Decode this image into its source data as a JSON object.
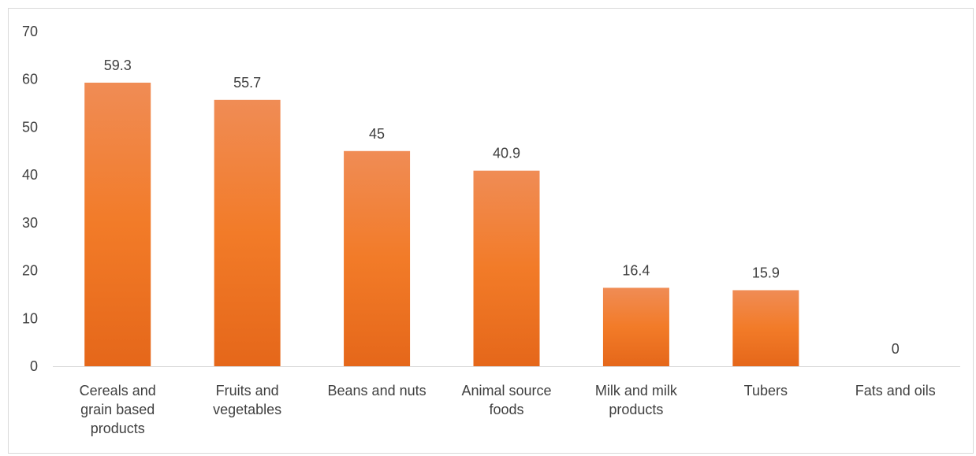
{
  "chart_data": {
    "type": "bar",
    "categories": [
      "Cereals and grain based products",
      "Fruits and vegetables",
      "Beans and nuts",
      "Animal source foods",
      "Milk and milk products",
      "Tubers",
      "Fats and oils"
    ],
    "category_lines": [
      [
        "Cereals and",
        "grain based",
        "products"
      ],
      [
        "Fruits and",
        "vegetables"
      ],
      [
        "Beans and nuts"
      ],
      [
        "Animal source",
        "foods"
      ],
      [
        "Milk and milk",
        "products"
      ],
      [
        "Tubers"
      ],
      [
        "Fats and oils"
      ]
    ],
    "values": [
      59.3,
      55.7,
      45,
      40.9,
      16.4,
      15.9,
      0
    ],
    "value_labels": [
      "59.3",
      "55.7",
      "45",
      "40.9",
      "16.4",
      "15.9",
      "0"
    ],
    "title": "",
    "xlabel": "",
    "ylabel": "",
    "ylim": [
      0,
      70
    ],
    "yticks": [
      0,
      10,
      20,
      30,
      40,
      50,
      60,
      70
    ],
    "grid": false,
    "legend": "none",
    "colors": {
      "bar_top": "#f08c55",
      "bar_mid": "#f27b28",
      "bar_bottom": "#e5671a",
      "axis": "#d9d9d9",
      "text": "#404040"
    }
  }
}
